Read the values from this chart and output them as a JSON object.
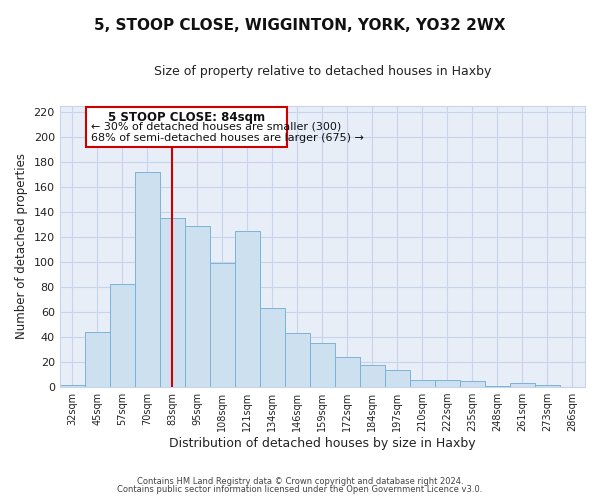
{
  "title": "5, STOOP CLOSE, WIGGINTON, YORK, YO32 2WX",
  "subtitle": "Size of property relative to detached houses in Haxby",
  "xlabel": "Distribution of detached houses by size in Haxby",
  "ylabel": "Number of detached properties",
  "footer1": "Contains HM Land Registry data © Crown copyright and database right 2024.",
  "footer2": "Contains public sector information licensed under the Open Government Licence v3.0.",
  "bins": [
    "32sqm",
    "45sqm",
    "57sqm",
    "70sqm",
    "83sqm",
    "95sqm",
    "108sqm",
    "121sqm",
    "134sqm",
    "146sqm",
    "159sqm",
    "172sqm",
    "184sqm",
    "197sqm",
    "210sqm",
    "222sqm",
    "235sqm",
    "248sqm",
    "261sqm",
    "273sqm",
    "286sqm"
  ],
  "values": [
    2,
    44,
    82,
    172,
    135,
    129,
    99,
    125,
    63,
    43,
    35,
    24,
    18,
    14,
    6,
    6,
    5,
    1,
    3,
    2,
    0
  ],
  "bar_color": "#cde0f0",
  "bar_edge_color": "#7bb3d8",
  "bar_width": 1.0,
  "vline_x": 4,
  "vline_color": "#cc0000",
  "annotation_title": "5 STOOP CLOSE: 84sqm",
  "annotation_line1": "← 30% of detached houses are smaller (300)",
  "annotation_line2": "68% of semi-detached houses are larger (675) →",
  "annotation_box_color": "#cc0000",
  "ylim": [
    0,
    225
  ],
  "yticks": [
    0,
    20,
    40,
    60,
    80,
    100,
    120,
    140,
    160,
    180,
    200,
    220
  ],
  "grid_color": "#c8d4e8",
  "background_color": "#ffffff",
  "plot_bg_color": "#e8eef8"
}
